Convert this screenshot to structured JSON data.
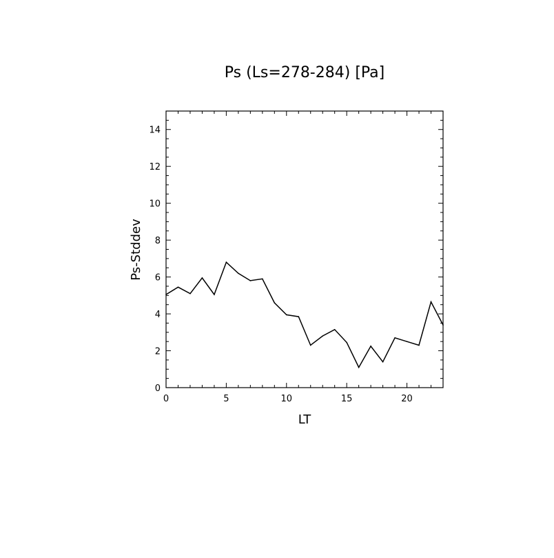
{
  "chart_data": {
    "type": "line",
    "title": "Ps (Ls=278-284) [Pa]",
    "xlabel": "LT",
    "ylabel": "Ps-Stddev",
    "xlim": [
      0,
      23
    ],
    "ylim": [
      0,
      15
    ],
    "xticks": [
      0,
      5,
      10,
      15,
      20
    ],
    "yticks": [
      0,
      2,
      4,
      6,
      8,
      10,
      12,
      14
    ],
    "xminor_step": 1,
    "yminor_step": 0.5,
    "grid": false,
    "legend": "none",
    "line_color": "#000000",
    "series": [
      {
        "x": [
          0,
          1,
          2,
          3,
          4,
          5,
          6,
          7,
          8,
          9,
          10,
          11,
          12,
          13,
          14,
          15,
          16,
          17,
          18,
          19,
          20,
          21,
          22,
          23
        ],
        "values": [
          5.05,
          5.45,
          5.1,
          5.95,
          5.05,
          6.8,
          6.2,
          5.8,
          5.9,
          4.6,
          3.95,
          3.85,
          2.3,
          2.8,
          3.15,
          2.45,
          1.1,
          2.25,
          1.4,
          2.7,
          2.5,
          2.3,
          4.65,
          3.4
        ]
      }
    ]
  }
}
